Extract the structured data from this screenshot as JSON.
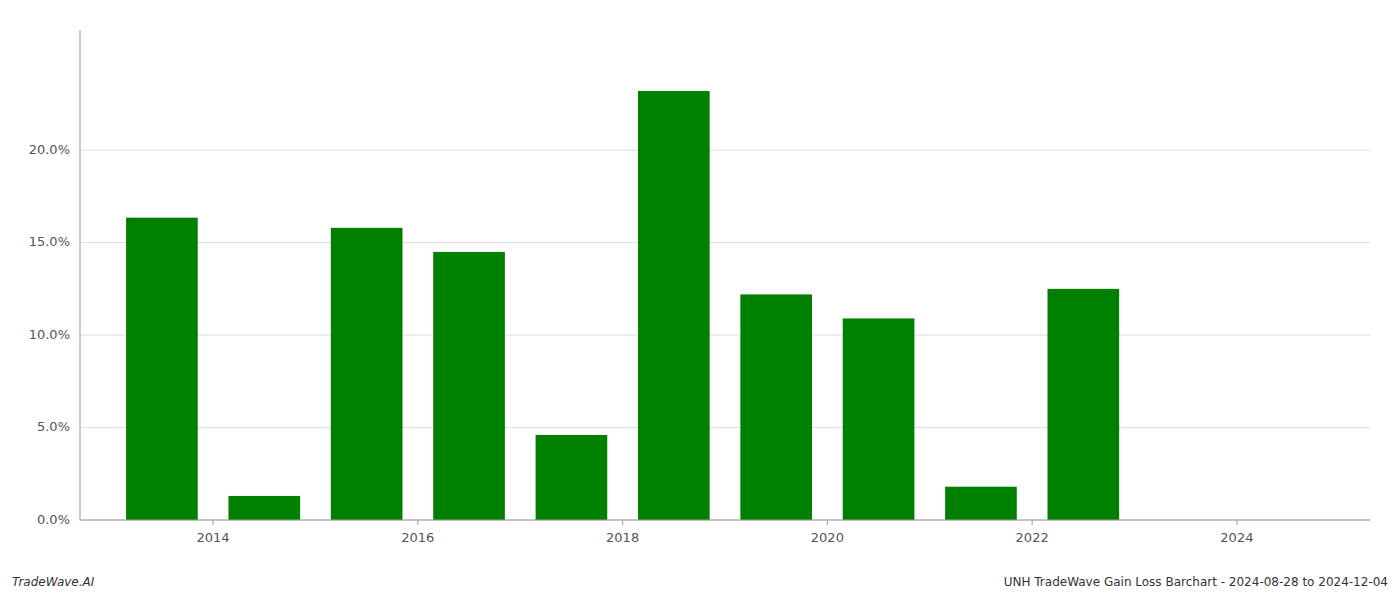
{
  "chart_data": {
    "type": "bar",
    "x": [
      2013,
      2014,
      2015,
      2016,
      2017,
      2018,
      2019,
      2020,
      2021,
      2022,
      2023
    ],
    "values": [
      0.1635,
      0.013,
      0.158,
      0.145,
      0.046,
      0.232,
      0.122,
      0.109,
      0.018,
      0.125,
      0.0
    ],
    "color": "#008000",
    "xlim": [
      2012.2,
      2024.8
    ],
    "xticks": [
      {
        "value": 2013.5,
        "label": "2014"
      },
      {
        "value": 2015.5,
        "label": "2016"
      },
      {
        "value": 2017.5,
        "label": "2018"
      },
      {
        "value": 2019.5,
        "label": "2020"
      },
      {
        "value": 2021.5,
        "label": "2022"
      },
      {
        "value": 2023.5,
        "label": "2024"
      }
    ],
    "ylim": [
      0,
      0.265
    ],
    "yticks": [
      {
        "value": 0.0,
        "label": "0.0%"
      },
      {
        "value": 0.05,
        "label": "5.0%"
      },
      {
        "value": 0.1,
        "label": "10.0%"
      },
      {
        "value": 0.15,
        "label": "15.0%"
      },
      {
        "value": 0.2,
        "label": "20.0%"
      }
    ],
    "grid": true,
    "annotations": [
      "TradeWave.AI",
      "UNH TradeWave Gain Loss Barchart - 2024-08-28 to 2024-12-04"
    ]
  }
}
